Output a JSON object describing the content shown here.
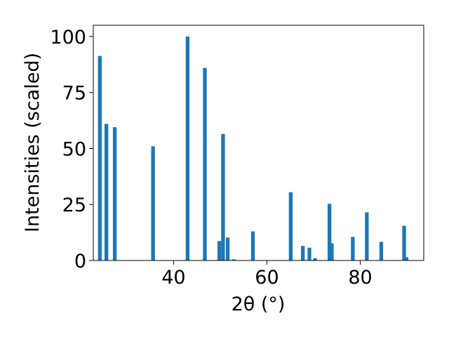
{
  "chart_data": {
    "type": "bar",
    "xlabel": "2θ (°)",
    "ylabel": "Intensities (scaled)",
    "xlim": [
      22.8,
      93.6
    ],
    "ylim": [
      0,
      105
    ],
    "xticks": [
      40,
      60,
      80
    ],
    "yticks": [
      0,
      25,
      50,
      75,
      100
    ],
    "grid": false,
    "bar_width_deg": 0.8,
    "color": "#1f77b4",
    "series": [
      {
        "x": [
          24.2,
          25.6,
          27.4,
          35.6,
          43.0,
          46.7,
          49.8,
          50.6,
          51.6,
          52.9,
          57.0,
          65.1,
          67.7,
          69.1,
          70.3,
          73.4,
          73.9,
          78.4,
          81.4,
          84.5,
          89.4,
          89.9
        ],
        "values": [
          91.3,
          61.0,
          59.5,
          51.0,
          100.0,
          86.0,
          8.7,
          56.5,
          10.2,
          0.5,
          13.0,
          30.5,
          6.5,
          5.7,
          1.0,
          25.3,
          7.7,
          10.5,
          21.5,
          8.3,
          15.5,
          1.5
        ]
      }
    ]
  }
}
